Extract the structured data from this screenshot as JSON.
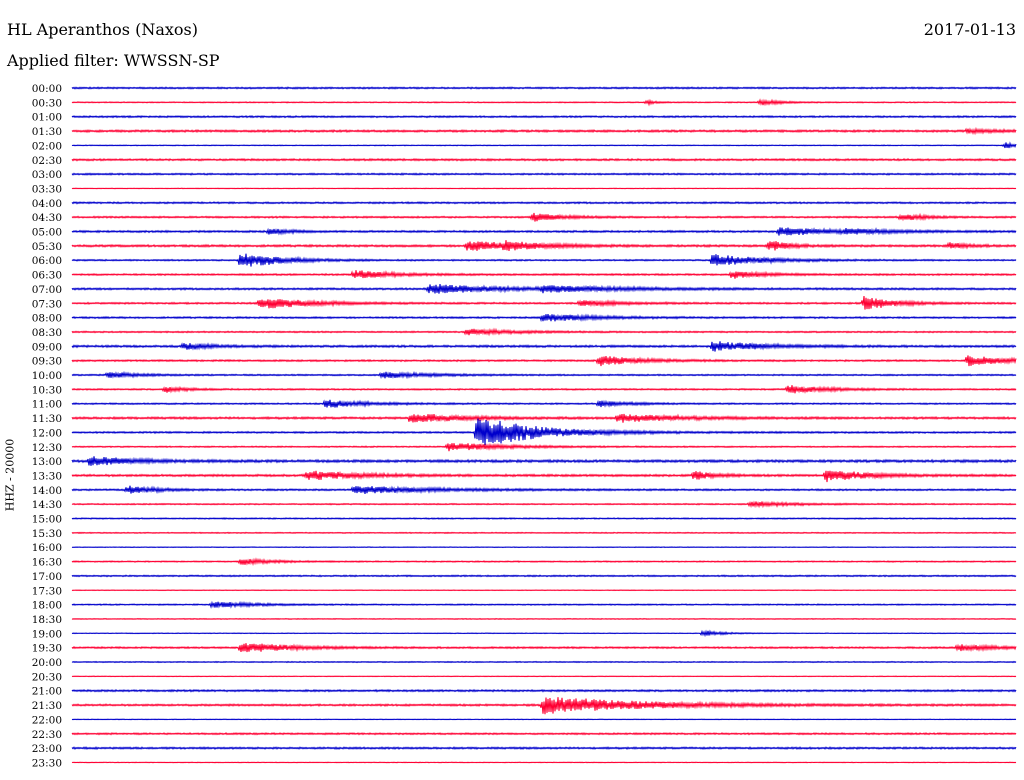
{
  "header": {
    "station": "HL Aperanthos (Naxos)",
    "date": "2017-01-13",
    "filter": "Applied filter: WWSSN-SP"
  },
  "colors": {
    "even_trace": "#0000cc",
    "odd_trace": "#ff0033"
  },
  "chart_data": {
    "type": "line",
    "title": "HL Aperanthos (Naxos)",
    "subtitle": "Applied filter: WWSSN-SP",
    "ylabel": "HHZ - 20000",
    "xlabel": "",
    "grid": false,
    "categories": [
      "00:00",
      "00:30",
      "01:00",
      "01:30",
      "02:00",
      "02:30",
      "03:00",
      "03:30",
      "04:00",
      "04:30",
      "05:00",
      "05:30",
      "06:00",
      "06:30",
      "07:00",
      "07:30",
      "08:00",
      "08:30",
      "09:00",
      "09:30",
      "10:00",
      "10:30",
      "11:00",
      "11:30",
      "12:00",
      "12:30",
      "13:00",
      "13:30",
      "14:00",
      "14:30",
      "15:00",
      "15:30",
      "16:00",
      "16:30",
      "17:00",
      "17:30",
      "18:00",
      "18:30",
      "19:00",
      "19:30",
      "20:00",
      "20:30",
      "21:00",
      "21:30",
      "22:00",
      "22:30",
      "23:00",
      "23:30"
    ],
    "noise": [
      0.8,
      0.5,
      0.8,
      1.0,
      0.4,
      0.9,
      0.8,
      0.3,
      0.8,
      0.8,
      0.9,
      1.0,
      0.7,
      0.8,
      0.9,
      0.8,
      0.8,
      0.7,
      1.0,
      0.8,
      0.7,
      0.7,
      0.7,
      1.0,
      0.8,
      0.6,
      1.2,
      1.0,
      0.8,
      0.6,
      0.6,
      0.5,
      0.3,
      0.6,
      0.7,
      0.3,
      0.6,
      0.4,
      0.3,
      0.8,
      0.5,
      0.3,
      0.9,
      0.9,
      0.3,
      0.8,
      0.9,
      0.3
    ],
    "events": [
      [],
      [
        [
          0.61,
          2,
          0.01
        ],
        [
          0.73,
          3,
          0.02
        ]
      ],
      [],
      [
        [
          0.95,
          2,
          0.03
        ]
      ],
      [
        [
          0.99,
          3,
          0.01
        ]
      ],
      [],
      [],
      [],
      [],
      [
        [
          0.49,
          4,
          0.03
        ],
        [
          0.88,
          4,
          0.02
        ]
      ],
      [
        [
          0.21,
          3,
          0.02
        ],
        [
          0.75,
          4,
          0.06
        ],
        [
          0.82,
          2,
          0.04
        ]
      ],
      [
        [
          0.42,
          5,
          0.05
        ],
        [
          0.46,
          3,
          0.04
        ],
        [
          0.74,
          5,
          0.02
        ],
        [
          0.93,
          3,
          0.02
        ]
      ],
      [
        [
          0.18,
          8,
          0.04
        ],
        [
          0.68,
          6,
          0.05
        ]
      ],
      [
        [
          0.3,
          4,
          0.04
        ],
        [
          0.7,
          4,
          0.03
        ]
      ],
      [
        [
          0.38,
          5,
          0.07
        ],
        [
          0.5,
          3,
          0.08
        ]
      ],
      [
        [
          0.2,
          6,
          0.05
        ],
        [
          0.54,
          3,
          0.04
        ],
        [
          0.84,
          7,
          0.03
        ]
      ],
      [
        [
          0.5,
          4,
          0.05
        ]
      ],
      [
        [
          0.42,
          3,
          0.05
        ]
      ],
      [
        [
          0.12,
          3,
          0.03
        ],
        [
          0.68,
          5,
          0.05
        ]
      ],
      [
        [
          0.56,
          5,
          0.04
        ],
        [
          0.95,
          5,
          0.04
        ]
      ],
      [
        [
          0.04,
          3,
          0.03
        ],
        [
          0.33,
          3,
          0.05
        ]
      ],
      [
        [
          0.1,
          3,
          0.02
        ],
        [
          0.76,
          4,
          0.04
        ]
      ],
      [
        [
          0.27,
          4,
          0.04
        ],
        [
          0.56,
          3,
          0.03
        ]
      ],
      [
        [
          0.36,
          5,
          0.05
        ],
        [
          0.58,
          4,
          0.06
        ]
      ],
      [
        [
          0.43,
          16,
          0.06
        ]
      ],
      [
        [
          0.4,
          4,
          0.06
        ]
      ],
      [
        [
          0.02,
          5,
          0.04
        ]
      ],
      [
        [
          0.25,
          5,
          0.05
        ],
        [
          0.66,
          4,
          0.02
        ],
        [
          0.8,
          6,
          0.04
        ]
      ],
      [
        [
          0.06,
          4,
          0.03
        ],
        [
          0.3,
          4,
          0.08
        ]
      ],
      [
        [
          0.72,
          3,
          0.04
        ]
      ],
      [],
      [],
      [],
      [
        [
          0.18,
          3,
          0.03
        ]
      ],
      [],
      [],
      [
        [
          0.15,
          3,
          0.04
        ]
      ],
      [],
      [
        [
          0.67,
          3,
          0.02
        ]
      ],
      [
        [
          0.18,
          5,
          0.05
        ],
        [
          0.94,
          3,
          0.04
        ]
      ],
      [],
      [],
      [],
      [
        [
          0.5,
          9,
          0.1
        ]
      ],
      [],
      [],
      [],
      []
    ]
  }
}
